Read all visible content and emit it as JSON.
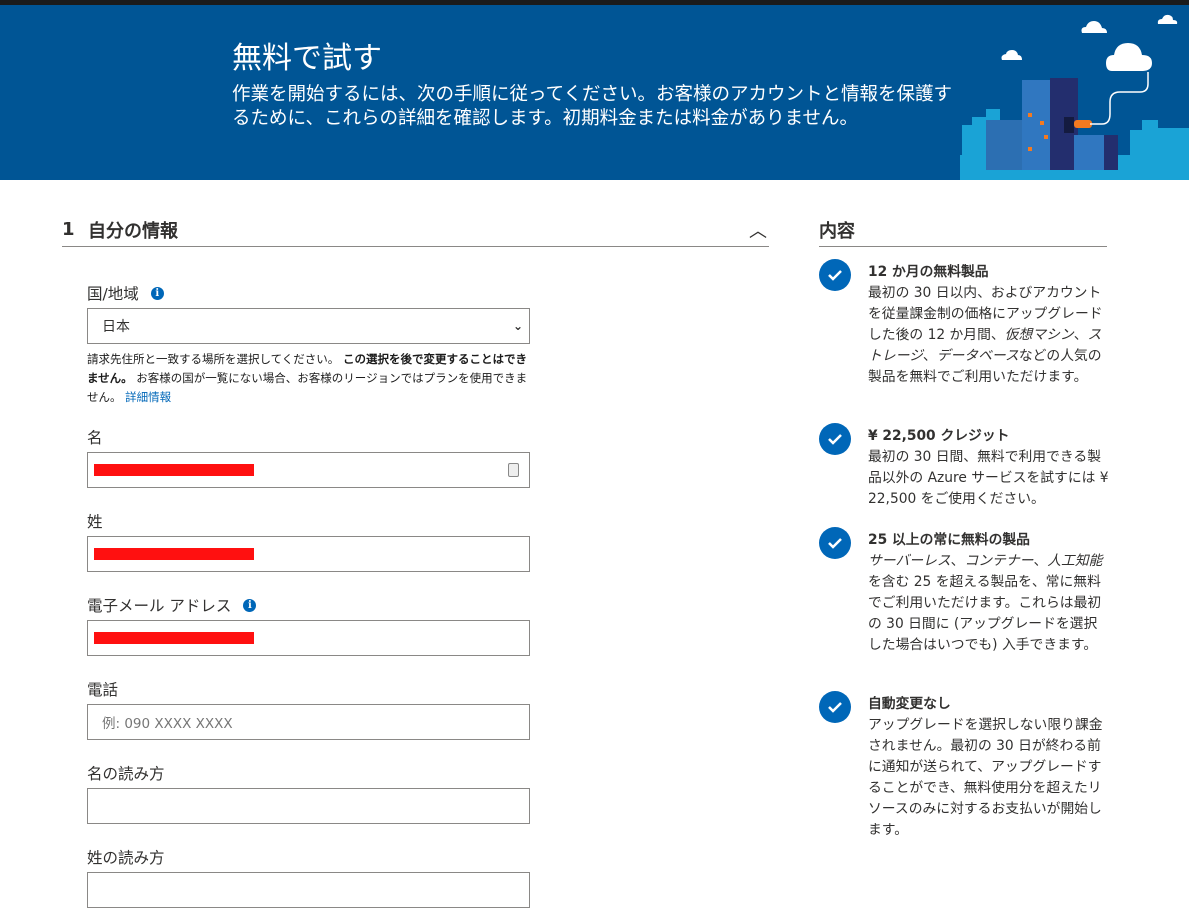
{
  "banner": {
    "title": "無料で試す",
    "description": "作業を開始するには、次の手順に従ってください。お客様のアカウントと情報を保護するために、これらの詳細を確認します。初期料金または料金がありません。"
  },
  "section": {
    "number": "1",
    "title": "自分の情報",
    "collapse_icon": "chevron-up-icon"
  },
  "form": {
    "country": {
      "label": "国/地域",
      "value": "日本"
    },
    "help_text": {
      "part1": "請求先住所と一致する場所を選択してください。 ",
      "bold": "この選択を後で変更することはできません。",
      "part2": " お客様の国が一覧にない場合、お客様のリージョンではプランを使用できません。 ",
      "link": "詳細情報"
    },
    "first_name": {
      "label": "名",
      "value": ""
    },
    "last_name": {
      "label": "姓",
      "value": ""
    },
    "email": {
      "label": "電子メール アドレス",
      "value": ""
    },
    "phone": {
      "label": "電話",
      "placeholder": "例: 090 XXXX XXXX"
    },
    "first_name_kana": {
      "label": "名の読み方",
      "value": ""
    },
    "last_name_kana": {
      "label": "姓の読み方",
      "value": ""
    }
  },
  "sidebar": {
    "title": "内容",
    "items": [
      {
        "title": "12 か月の無料製品",
        "p1": "最初の 30 日以内、およびアカウントを従量課金制の価格にアップグレードした後の 12 か月間、",
        "i1": "仮想マシン",
        "p2": "、",
        "i2": "ストレージ",
        "p3": "、",
        "i3": "データベース",
        "p4": "などの人気の製品を無料でご利用いただけます。"
      },
      {
        "title": "¥ 22,500 クレジット",
        "p1": "最初の 30 日間、無料で利用できる製品以外の Azure サービスを試すには ¥ 22,500 をご使用ください。"
      },
      {
        "title": "25 以上の常に無料の製品",
        "i1": "サーバーレス",
        "p1": "、",
        "i2": "コンテナー",
        "p2": "、",
        "i3": "人工知能",
        "p3": "を含む 25 を超える製品を、常に無料でご利用いただけます。これらは最初の 30 日間に (アップグレードを選択した場合はいつでも) 入手できます。"
      },
      {
        "title": "自動変更なし",
        "p1": "アップグレードを選択しない限り課金されません。最初の 30 日が終わる前に通知が送られて、アップグレードすることができ、無料使用分を超えたリソースのみに対するお支払いが開始します。"
      }
    ]
  },
  "colors": {
    "banner": "#005595",
    "accent": "#0067b8",
    "redaction": "#ff1010"
  }
}
